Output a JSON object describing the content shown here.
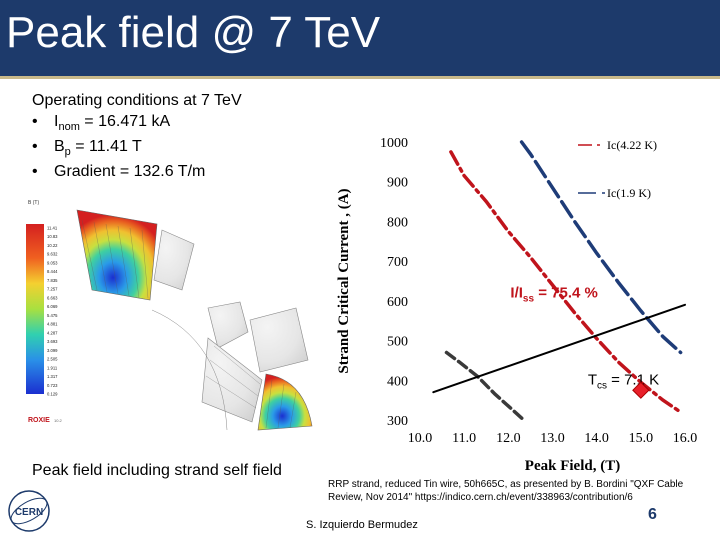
{
  "slide": {
    "title": "Peak field @ 7 TeV",
    "operating_title": "Operating conditions at 7 TeV",
    "bullets": [
      {
        "label": "I",
        "sub": "nom",
        "text": " = 16.471 kA"
      },
      {
        "label": "B",
        "sub": "p",
        "text": " = 11.41 T"
      },
      {
        "label": "",
        "sub": "",
        "text": "Gradient = 132.6 T/m"
      }
    ],
    "bullet_char": "•",
    "field_map": {
      "unit": "B (T)",
      "scale": [
        "11.41",
        "10.83",
        "10.22",
        "9.632",
        "9.053",
        "8.444",
        "7.835",
        "7.257",
        "6.663",
        "6.069",
        "5.475",
        "4.881",
        "4.287",
        "3.693",
        "3.099",
        "2.505",
        "1.911",
        "1.317",
        "0.723",
        "0.129"
      ],
      "logo": "ROXIE",
      "logo_version": "10.2"
    },
    "left_caption": "Peak field including strand self field",
    "source_note": "RRP strand, reduced Tin wire, 50h665C, as presented by B. Bordini \"QXF Cable Review, Nov 2014\" https://indico.cern.ch/event/338963/contribution/6",
    "author": "S. Izquierdo Bermudez",
    "page_number": "6",
    "logo": "CERN"
  },
  "colors": {
    "header_bg": "#1d3a6b",
    "header_rule": "#c9b98a",
    "red_curve": "#c0141c",
    "blue_curve": "#1e3c78",
    "gray_curve": "#3a3a3a",
    "annotation": "#c0141c",
    "marker": "#e8202a"
  },
  "chart_data": {
    "type": "line",
    "xlabel": "Peak Field, (T)",
    "ylabel": "Strand Critical Current , (A)",
    "xlim": [
      10.0,
      16.0
    ],
    "ylim": [
      300,
      1000
    ],
    "x_ticks": [
      "10.0",
      "11.0",
      "12.0",
      "13.0",
      "14.0",
      "15.0",
      "16.0"
    ],
    "y_ticks": [
      "300",
      "400",
      "500",
      "600",
      "700",
      "800",
      "900",
      "1000"
    ],
    "grid": false,
    "legend_position": "top-right",
    "series": [
      {
        "name": "Ic(4.22 K)",
        "style": "dash-dot",
        "color": "red",
        "points": [
          [
            10.7,
            975
          ],
          [
            11.0,
            915
          ],
          [
            11.5,
            850
          ],
          [
            12.0,
            775
          ],
          [
            12.5,
            710
          ],
          [
            13.0,
            640
          ],
          [
            13.5,
            570
          ],
          [
            14.0,
            505
          ],
          [
            14.5,
            445
          ],
          [
            15.0,
            395
          ],
          [
            15.5,
            350
          ],
          [
            15.9,
            320
          ]
        ]
      },
      {
        "name": "Ic(1.9 K)",
        "style": "dashed",
        "color": "blue",
        "points": [
          [
            12.3,
            1000
          ],
          [
            12.5,
            970
          ],
          [
            13.0,
            885
          ],
          [
            13.5,
            800
          ],
          [
            14.0,
            720
          ],
          [
            14.5,
            645
          ],
          [
            15.0,
            575
          ],
          [
            15.5,
            510
          ],
          [
            15.9,
            470
          ]
        ]
      },
      {
        "name": "",
        "style": "dashed-dark",
        "color": "gray",
        "points": [
          [
            10.6,
            470
          ],
          [
            10.9,
            445
          ],
          [
            11.3,
            410
          ],
          [
            11.7,
            365
          ],
          [
            12.1,
            325
          ],
          [
            12.35,
            300
          ]
        ]
      },
      {
        "name": "",
        "style": "solid",
        "color": "black",
        "points": [
          [
            10.3,
            370
          ],
          [
            16.0,
            590
          ]
        ]
      }
    ],
    "annotations": [
      {
        "text": "I/I",
        "sub": "ss",
        "after": " = 75.4 %",
        "x": 12.5,
        "y": 608
      },
      {
        "text": "T",
        "sub": "cs",
        "after": " = 7.1 K",
        "x": 13.8,
        "y": 390
      }
    ],
    "operating_point": {
      "x": 15.0,
      "y": 375
    }
  }
}
